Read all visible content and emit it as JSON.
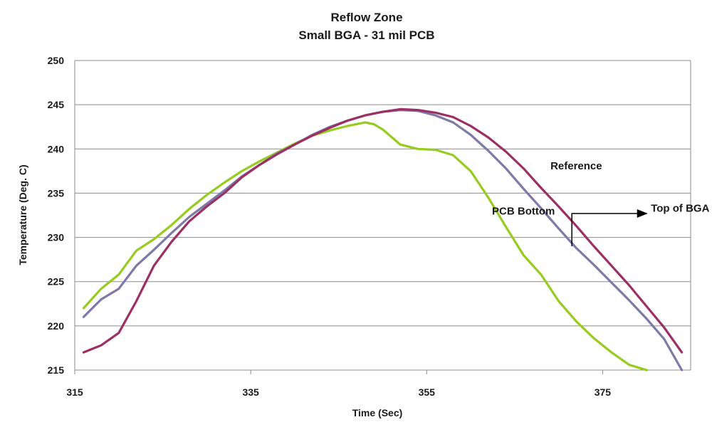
{
  "chart_data": {
    "type": "line",
    "title": "Reflow Zone",
    "subtitle": "Small BGA - 31 mil PCB",
    "xlabel": "Time (Sec)",
    "ylabel": "Temperature (Deg. C)",
    "xlim": [
      315,
      385
    ],
    "ylim": [
      215,
      250
    ],
    "xticks": [
      315,
      335,
      355,
      375
    ],
    "yticks": [
      215,
      220,
      225,
      230,
      235,
      240,
      245,
      250
    ],
    "grid": true,
    "series": [
      {
        "name": "Reference",
        "color": "#9c2f63",
        "x": [
          316,
          318,
          320,
          322,
          324,
          326,
          328,
          330,
          332,
          334,
          336,
          338,
          340,
          342,
          344,
          346,
          348,
          350,
          352,
          354,
          356,
          358,
          360,
          362,
          364,
          366,
          368,
          370,
          372,
          374,
          376,
          378,
          380,
          382,
          384
        ],
        "y": [
          217.0,
          217.8,
          219.2,
          222.8,
          226.8,
          229.5,
          231.8,
          233.5,
          235.0,
          236.8,
          238.2,
          239.4,
          240.5,
          241.5,
          242.4,
          243.2,
          243.8,
          244.2,
          244.5,
          244.4,
          244.1,
          243.6,
          242.6,
          241.3,
          239.7,
          237.8,
          235.6,
          233.5,
          231.3,
          229.0,
          226.8,
          224.6,
          222.2,
          219.8,
          217.0
        ]
      },
      {
        "name": "Top of BGA",
        "color": "#7b7aa8",
        "x": [
          316,
          318,
          320,
          322,
          324,
          326,
          328,
          330,
          332,
          334,
          336,
          338,
          340,
          342,
          344,
          346,
          348,
          350,
          352,
          354,
          356,
          358,
          360,
          362,
          364,
          366,
          368,
          370,
          372,
          374,
          376,
          378,
          380,
          382,
          384
        ],
        "y": [
          221.0,
          223.0,
          224.2,
          226.8,
          228.6,
          230.5,
          232.3,
          233.8,
          235.3,
          236.9,
          238.2,
          239.5,
          240.5,
          241.6,
          242.5,
          243.2,
          243.8,
          244.2,
          244.4,
          244.3,
          243.8,
          243.0,
          241.6,
          239.8,
          237.8,
          235.5,
          233.3,
          231.0,
          228.8,
          226.9,
          224.9,
          222.9,
          220.8,
          218.5,
          215.0
        ]
      },
      {
        "name": "PCB Bottom",
        "color": "#95cc1e",
        "x": [
          316,
          318,
          320,
          322,
          324,
          326,
          328,
          330,
          332,
          334,
          336,
          338,
          340,
          342,
          344,
          346,
          348,
          349,
          350,
          352,
          354,
          356,
          358,
          360,
          362,
          364,
          366,
          368,
          370,
          372,
          374,
          376,
          378,
          380
        ],
        "y": [
          222.0,
          224.2,
          225.8,
          228.5,
          229.8,
          231.4,
          233.2,
          234.8,
          236.2,
          237.5,
          238.6,
          239.6,
          240.6,
          241.5,
          242.1,
          242.6,
          243.0,
          242.8,
          242.2,
          240.5,
          240.0,
          239.9,
          239.3,
          237.5,
          234.5,
          231.2,
          228.0,
          225.8,
          222.8,
          220.5,
          218.6,
          217.0,
          215.6,
          215.0
        ]
      }
    ],
    "annotations": [
      {
        "text": "Reference",
        "x": 372,
        "y": 238.1
      },
      {
        "text": "PCB Bottom",
        "x": 366,
        "y": 233.0
      },
      {
        "text": "Top of BGA",
        "x": 380,
        "y": 233.3,
        "arrow_from": {
          "x": 371.5,
          "y": 229.0
        },
        "arrow_corner": {
          "x": 371.5,
          "y": 232.7
        }
      }
    ]
  }
}
